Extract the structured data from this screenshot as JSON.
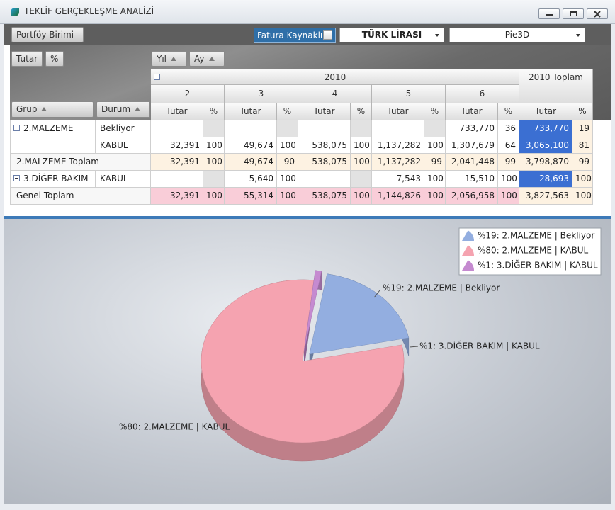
{
  "window": {
    "title": "TEKLİF GERÇEKLEŞME ANALİZİ"
  },
  "toolbar": {
    "field": "Portföy Birimi",
    "checkbox": "Fatura Kaynaklı",
    "currency": "TÜRK LİRASI",
    "chart_type": "Pie3D"
  },
  "pivot": {
    "data_fields": [
      "Tutar",
      "%"
    ],
    "column_fields": [
      "Yıl",
      "Ay"
    ],
    "row_fields": [
      "Grup",
      "Durum"
    ],
    "year": "2010",
    "year_total": "2010 Toplam",
    "months": [
      "2",
      "3",
      "4",
      "5",
      "6"
    ],
    "measures": [
      "Tutar",
      "%"
    ],
    "rows": [
      {
        "group": "2.MALZEME",
        "status": "Bekliyor",
        "cells": [
          null,
          null,
          null,
          null,
          null,
          null,
          null,
          null,
          "733,770",
          "36",
          "733,770",
          "19"
        ]
      },
      {
        "status": "KABUL",
        "cells": [
          "32,391",
          "100",
          "49,674",
          "100",
          "538,075",
          "100",
          "1,137,282",
          "100",
          "1,307,679",
          "64",
          "3,065,100",
          "81"
        ]
      },
      {
        "label": "2.MALZEME Toplam",
        "cells": [
          "32,391",
          "100",
          "49,674",
          "90",
          "538,075",
          "100",
          "1,137,282",
          "99",
          "2,041,448",
          "99",
          "3,798,870",
          "99"
        ]
      },
      {
        "group": "3.DİĞER BAKIM",
        "status": "KABUL",
        "cells": [
          null,
          null,
          "5,640",
          "100",
          null,
          null,
          "7,543",
          "100",
          "15,510",
          "100",
          "28,693",
          "100"
        ]
      },
      {
        "label": "Genel Toplam",
        "cells": [
          "32,391",
          "100",
          "55,314",
          "100",
          "538,075",
          "100",
          "1,144,826",
          "100",
          "2,056,958",
          "100",
          "3,827,563",
          "100"
        ]
      }
    ]
  },
  "chart_data": {
    "type": "pie",
    "categories": [
      "%19: 2.MALZEME | Bekliyor",
      "%80: 2.MALZEME | KABUL",
      "%1: 3.DİĞER BAKIM | KABUL"
    ],
    "values": [
      19,
      80,
      1
    ],
    "colors": [
      "#93aee0",
      "#f5a3b0",
      "#c58ad0"
    ]
  }
}
